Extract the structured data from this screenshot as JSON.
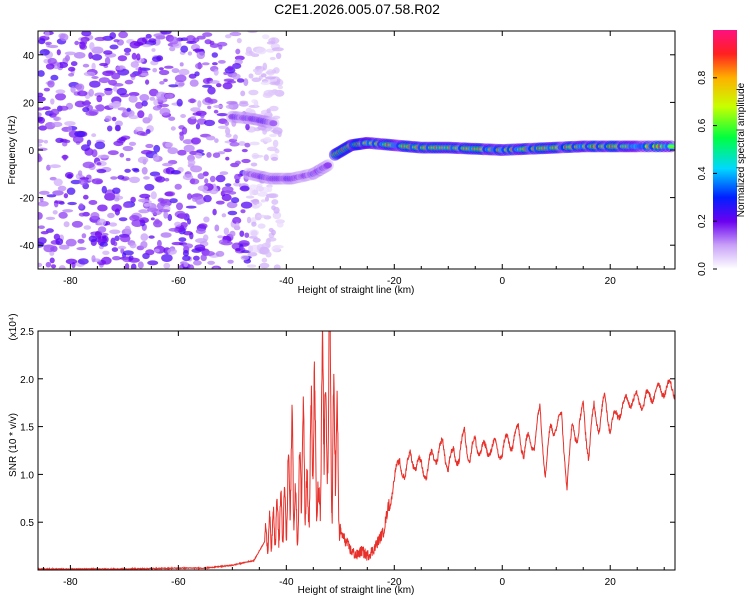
{
  "title": "C2E1.2026.005.07.58.R02",
  "chart_data": [
    {
      "type": "heatmap",
      "xlabel": "Height of straight line (km)",
      "ylabel": "Frequency (Hz)",
      "xlim": [
        -86,
        32
      ],
      "ylim": [
        -50,
        50
      ],
      "xticks": [
        -80,
        -60,
        -40,
        -20,
        0,
        20
      ],
      "yticks": [
        -40,
        -20,
        0,
        20,
        40
      ],
      "colorbar": {
        "label": "Normalized spectral amplitude",
        "range": [
          0,
          1
        ],
        "ticks": [
          "0.0",
          "0.2",
          "0.4",
          "0.6",
          "0.8"
        ]
      },
      "noise_region": {
        "x": [
          -86,
          -47
        ],
        "y": [
          -50,
          50
        ]
      },
      "branches": [
        {
          "points": [
            [
              -50,
              14
            ],
            [
              -46,
              13
            ],
            [
              -42,
              11
            ]
          ],
          "amplitude": 0.35
        },
        {
          "points": [
            [
              -47,
              -10
            ],
            [
              -43,
              -12
            ],
            [
              -39,
              -12
            ],
            [
              -35,
              -10
            ],
            [
              -32,
              -6
            ]
          ],
          "amplitude": 0.35
        },
        {
          "points": [
            [
              -31,
              -2
            ],
            [
              -28,
              2
            ],
            [
              -25,
              3
            ],
            [
              -20,
              2
            ],
            [
              -15,
              1
            ],
            [
              -10,
              1
            ],
            [
              -5,
              0.5
            ],
            [
              0,
              0
            ],
            [
              5,
              0.5
            ],
            [
              10,
              1
            ],
            [
              15,
              1.5
            ],
            [
              20,
              1.5
            ],
            [
              25,
              1.5
            ],
            [
              32,
              1.5
            ]
          ],
          "amplitude": 0.85
        }
      ]
    },
    {
      "type": "line",
      "xlabel": "Height of straight line (km)",
      "ylabel": "SNR (10 * v/v)",
      "yscale_label": "(x10⁴)",
      "xlim": [
        -86,
        32
      ],
      "ylim": [
        0,
        2.5
      ],
      "xticks": [
        -80,
        -60,
        -40,
        -20,
        0,
        20
      ],
      "yticks": [
        "0.5",
        "1.0",
        "1.5",
        "2.0",
        "2.5"
      ],
      "color": "#e8302a",
      "series": [
        {
          "x": [
            -86,
            -80,
            -70,
            -60,
            -55,
            -50,
            -46,
            -44,
            -42,
            -40,
            -39,
            -38,
            -37,
            -36,
            -35,
            -34,
            -33,
            -32.5,
            -32,
            -31.5,
            -31,
            -30,
            -29,
            -28,
            -27,
            -26,
            -25,
            -24,
            -23,
            -22,
            -21,
            -20,
            -19,
            -18,
            -17,
            -16,
            -15,
            -14,
            -13,
            -12,
            -11,
            -10,
            -9,
            -8,
            -7,
            -6,
            -5,
            -4,
            -3,
            -2,
            -1,
            0,
            1,
            2,
            3,
            4,
            5,
            6,
            7,
            8,
            9,
            10,
            11,
            12,
            13,
            14,
            15,
            16,
            17,
            18,
            19,
            20,
            22,
            24,
            26,
            28,
            30,
            32
          ],
          "values": [
            0.01,
            0.01,
            0.01,
            0.02,
            0.02,
            0.05,
            0.1,
            0.3,
            0.5,
            0.6,
            1.2,
            0.4,
            1.4,
            0.6,
            1.7,
            0.5,
            2.2,
            1.0,
            2.5,
            0.8,
            1.8,
            0.4,
            0.3,
            0.2,
            0.15,
            0.2,
            0.15,
            0.2,
            0.3,
            0.4,
            0.7,
            0.9,
            1.2,
            0.9,
            1.3,
            1.0,
            1.2,
            0.9,
            1.3,
            1.1,
            1.4,
            1.0,
            1.3,
            1.1,
            1.5,
            1.1,
            1.4,
            1.2,
            1.3,
            1.25,
            1.3,
            1.2,
            1.4,
            1.3,
            1.5,
            1.2,
            1.4,
            1.3,
            1.7,
            1.0,
            1.5,
            1.5,
            1.6,
            0.9,
            1.5,
            1.4,
            1.7,
            1.2,
            1.7,
            1.5,
            1.8,
            1.5,
            1.7,
            1.8,
            1.75,
            1.85,
            1.9,
            1.9
          ]
        }
      ]
    }
  ]
}
